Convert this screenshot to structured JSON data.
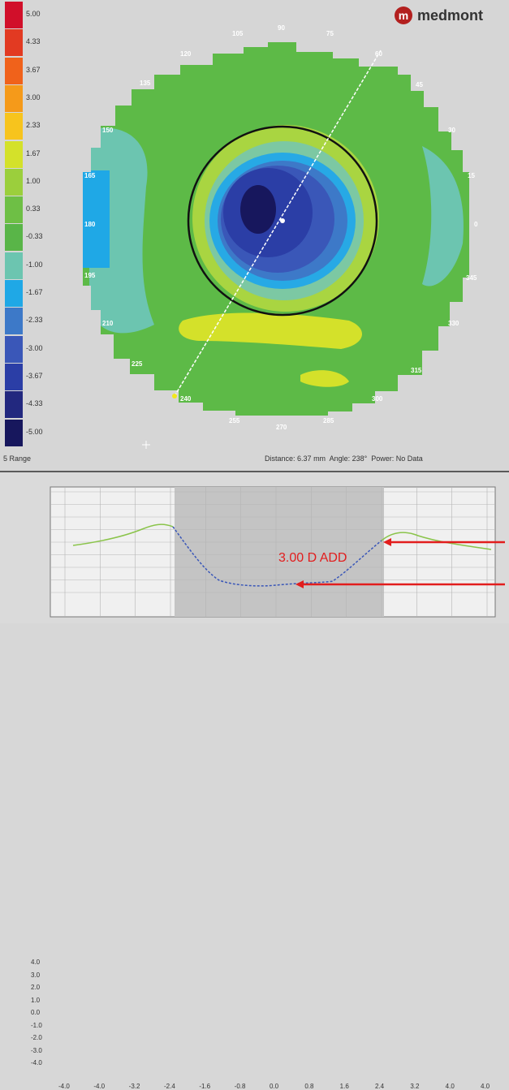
{
  "brand": {
    "logo_mark": "m",
    "name": "medmont"
  },
  "legend": {
    "levels": [
      {
        "label": "5.00",
        "color": "#d10f2a"
      },
      {
        "label": "4.33",
        "color": "#e23a22"
      },
      {
        "label": "3.67",
        "color": "#f0621b"
      },
      {
        "label": "3.00",
        "color": "#f59a1a"
      },
      {
        "label": "2.33",
        "color": "#f7c41d"
      },
      {
        "label": "1.67",
        "color": "#d4e12a"
      },
      {
        "label": "1.00",
        "color": "#9bcf3c"
      },
      {
        "label": "0.33",
        "color": "#6ebf45"
      },
      {
        "label": "-0.33",
        "color": "#59b548"
      },
      {
        "label": "-1.00",
        "color": "#6cc5b0"
      },
      {
        "label": "-1.67",
        "color": "#1fa8e6"
      },
      {
        "label": "-2.33",
        "color": "#3d79c8"
      },
      {
        "label": "-3.00",
        "color": "#3a57b8"
      },
      {
        "label": "-3.67",
        "color": "#2b3ea6"
      },
      {
        "label": "-4.33",
        "color": "#22287f"
      },
      {
        "label": "-5.00",
        "color": "#17175d"
      }
    ],
    "range_label": "5 Range"
  },
  "angle_labels": [
    "105",
    "90",
    "75",
    "120",
    "60",
    "135",
    "45",
    "150",
    "30",
    "165",
    "15",
    "180",
    "0",
    "195",
    "345",
    "210",
    "330",
    "225",
    "315",
    "240",
    "300",
    "255",
    "270",
    "285"
  ],
  "status": {
    "distance_label": "Distance:",
    "distance_value": "6.37 mm",
    "angle_label": "Angle:",
    "angle_value": "238°",
    "power_label": "Power:",
    "power_value": "No Data"
  },
  "profile": {
    "y_ticks": [
      "4.0",
      "3.0",
      "2.0",
      "1.0",
      "0.0",
      "-1.0",
      "-2.0",
      "-3.0",
      "-4.0"
    ],
    "x_ticks": [
      "-4.0",
      "-4.0",
      "-3.2",
      "-2.4",
      "-1.6",
      "-0.8",
      "0.0",
      "0.8",
      "1.6",
      "2.4",
      "3.2",
      "4.0",
      "4.0"
    ],
    "annotation": "3.00 D ADD"
  }
}
